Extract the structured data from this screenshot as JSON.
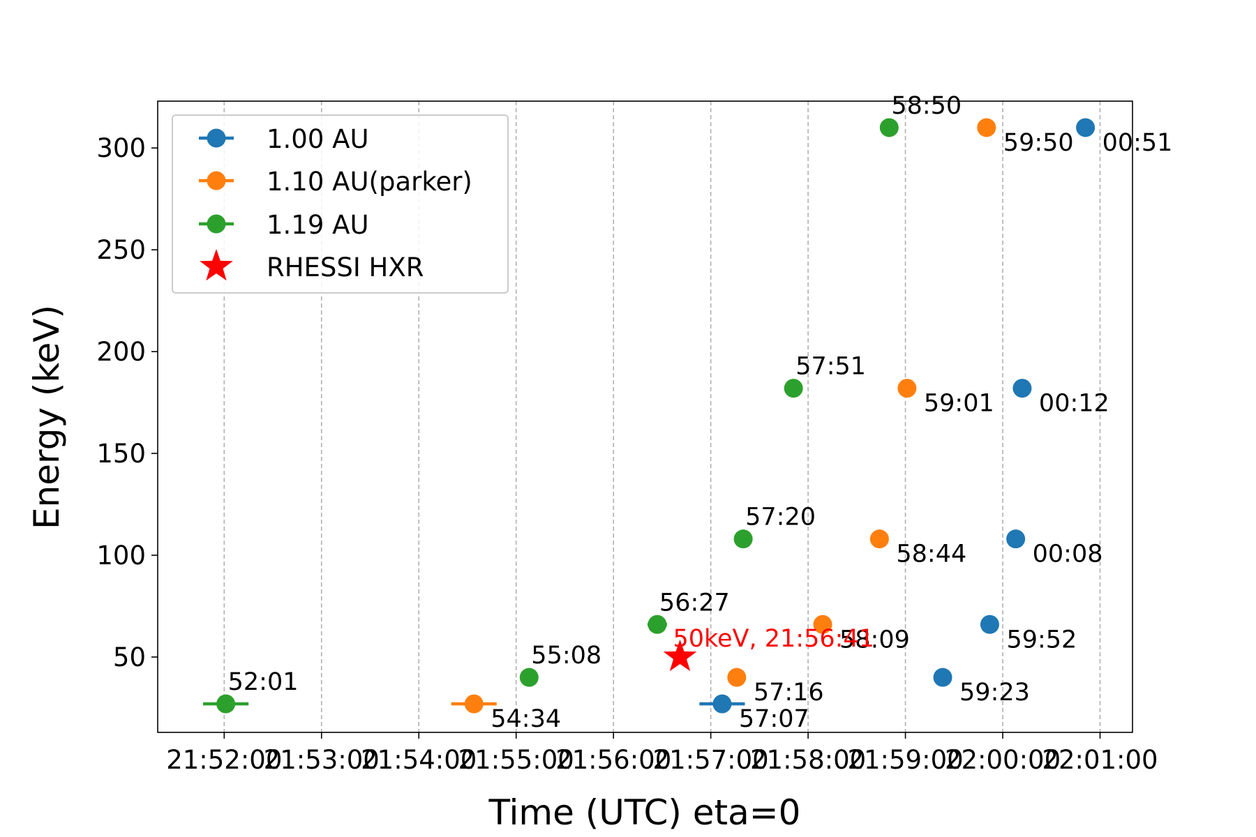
{
  "chart_data": {
    "type": "scatter",
    "xlabel": "Time (UTC) eta=0",
    "ylabel": "Energy (keV)",
    "xlim": [
      "21:51:19",
      "22:01:20"
    ],
    "ylim": [
      13,
      323
    ],
    "x_ticks": [
      "21:52:00",
      "21:53:00",
      "21:54:00",
      "21:55:00",
      "21:56:00",
      "21:57:00",
      "21:58:00",
      "21:59:00",
      "22:00:00",
      "22:01:00"
    ],
    "y_ticks": [
      50,
      100,
      150,
      200,
      250,
      300
    ],
    "grid": "vertical dashed",
    "legend_position": "top-left",
    "series": [
      {
        "name": "1.00 AU",
        "color": "#1f77b4",
        "points": [
          {
            "t": "21:57:07",
            "e": 27,
            "label": "57:07",
            "err_left_s": 14,
            "err_right_s": 14
          },
          {
            "t": "21:59:23",
            "e": 40,
            "label": "59:23"
          },
          {
            "t": "21:59:52",
            "e": 66,
            "label": "59:52"
          },
          {
            "t": "22:00:08",
            "e": 108,
            "label": "00:08"
          },
          {
            "t": "22:00:12",
            "e": 182,
            "label": "00:12"
          },
          {
            "t": "22:00:51",
            "e": 310,
            "label": "00:51"
          }
        ]
      },
      {
        "name": "1.10 AU(parker)",
        "color": "#ff7f0e",
        "points": [
          {
            "t": "21:54:34",
            "e": 27,
            "label": "54:34",
            "err_left_s": 14,
            "err_right_s": 14
          },
          {
            "t": "21:57:16",
            "e": 40,
            "label": "57:16"
          },
          {
            "t": "21:58:09",
            "e": 66,
            "label": "58:09"
          },
          {
            "t": "21:58:44",
            "e": 108,
            "label": "58:44"
          },
          {
            "t": "21:59:01",
            "e": 182,
            "label": "59:01"
          },
          {
            "t": "21:59:50",
            "e": 310,
            "label": "59:50"
          }
        ]
      },
      {
        "name": "1.19 AU",
        "color": "#2ca02c",
        "points": [
          {
            "t": "21:52:01",
            "e": 27,
            "label": "52:01",
            "err_left_s": 14,
            "err_right_s": 14
          },
          {
            "t": "21:55:08",
            "e": 40,
            "label": "55:08"
          },
          {
            "t": "21:56:27",
            "e": 66,
            "label": "56:27",
            "err_left_s": 6,
            "err_right_s": 6
          },
          {
            "t": "21:57:20",
            "e": 108,
            "label": "57:20"
          },
          {
            "t": "21:57:51",
            "e": 182,
            "label": "57:51"
          },
          {
            "t": "21:58:50",
            "e": 310,
            "label": "58:50"
          }
        ]
      }
    ],
    "hxr": {
      "name": "RHESSI HXR",
      "color": "#ff0000",
      "t": "21:56:41",
      "e": 50,
      "label": "50keV, 21:56:41"
    }
  }
}
